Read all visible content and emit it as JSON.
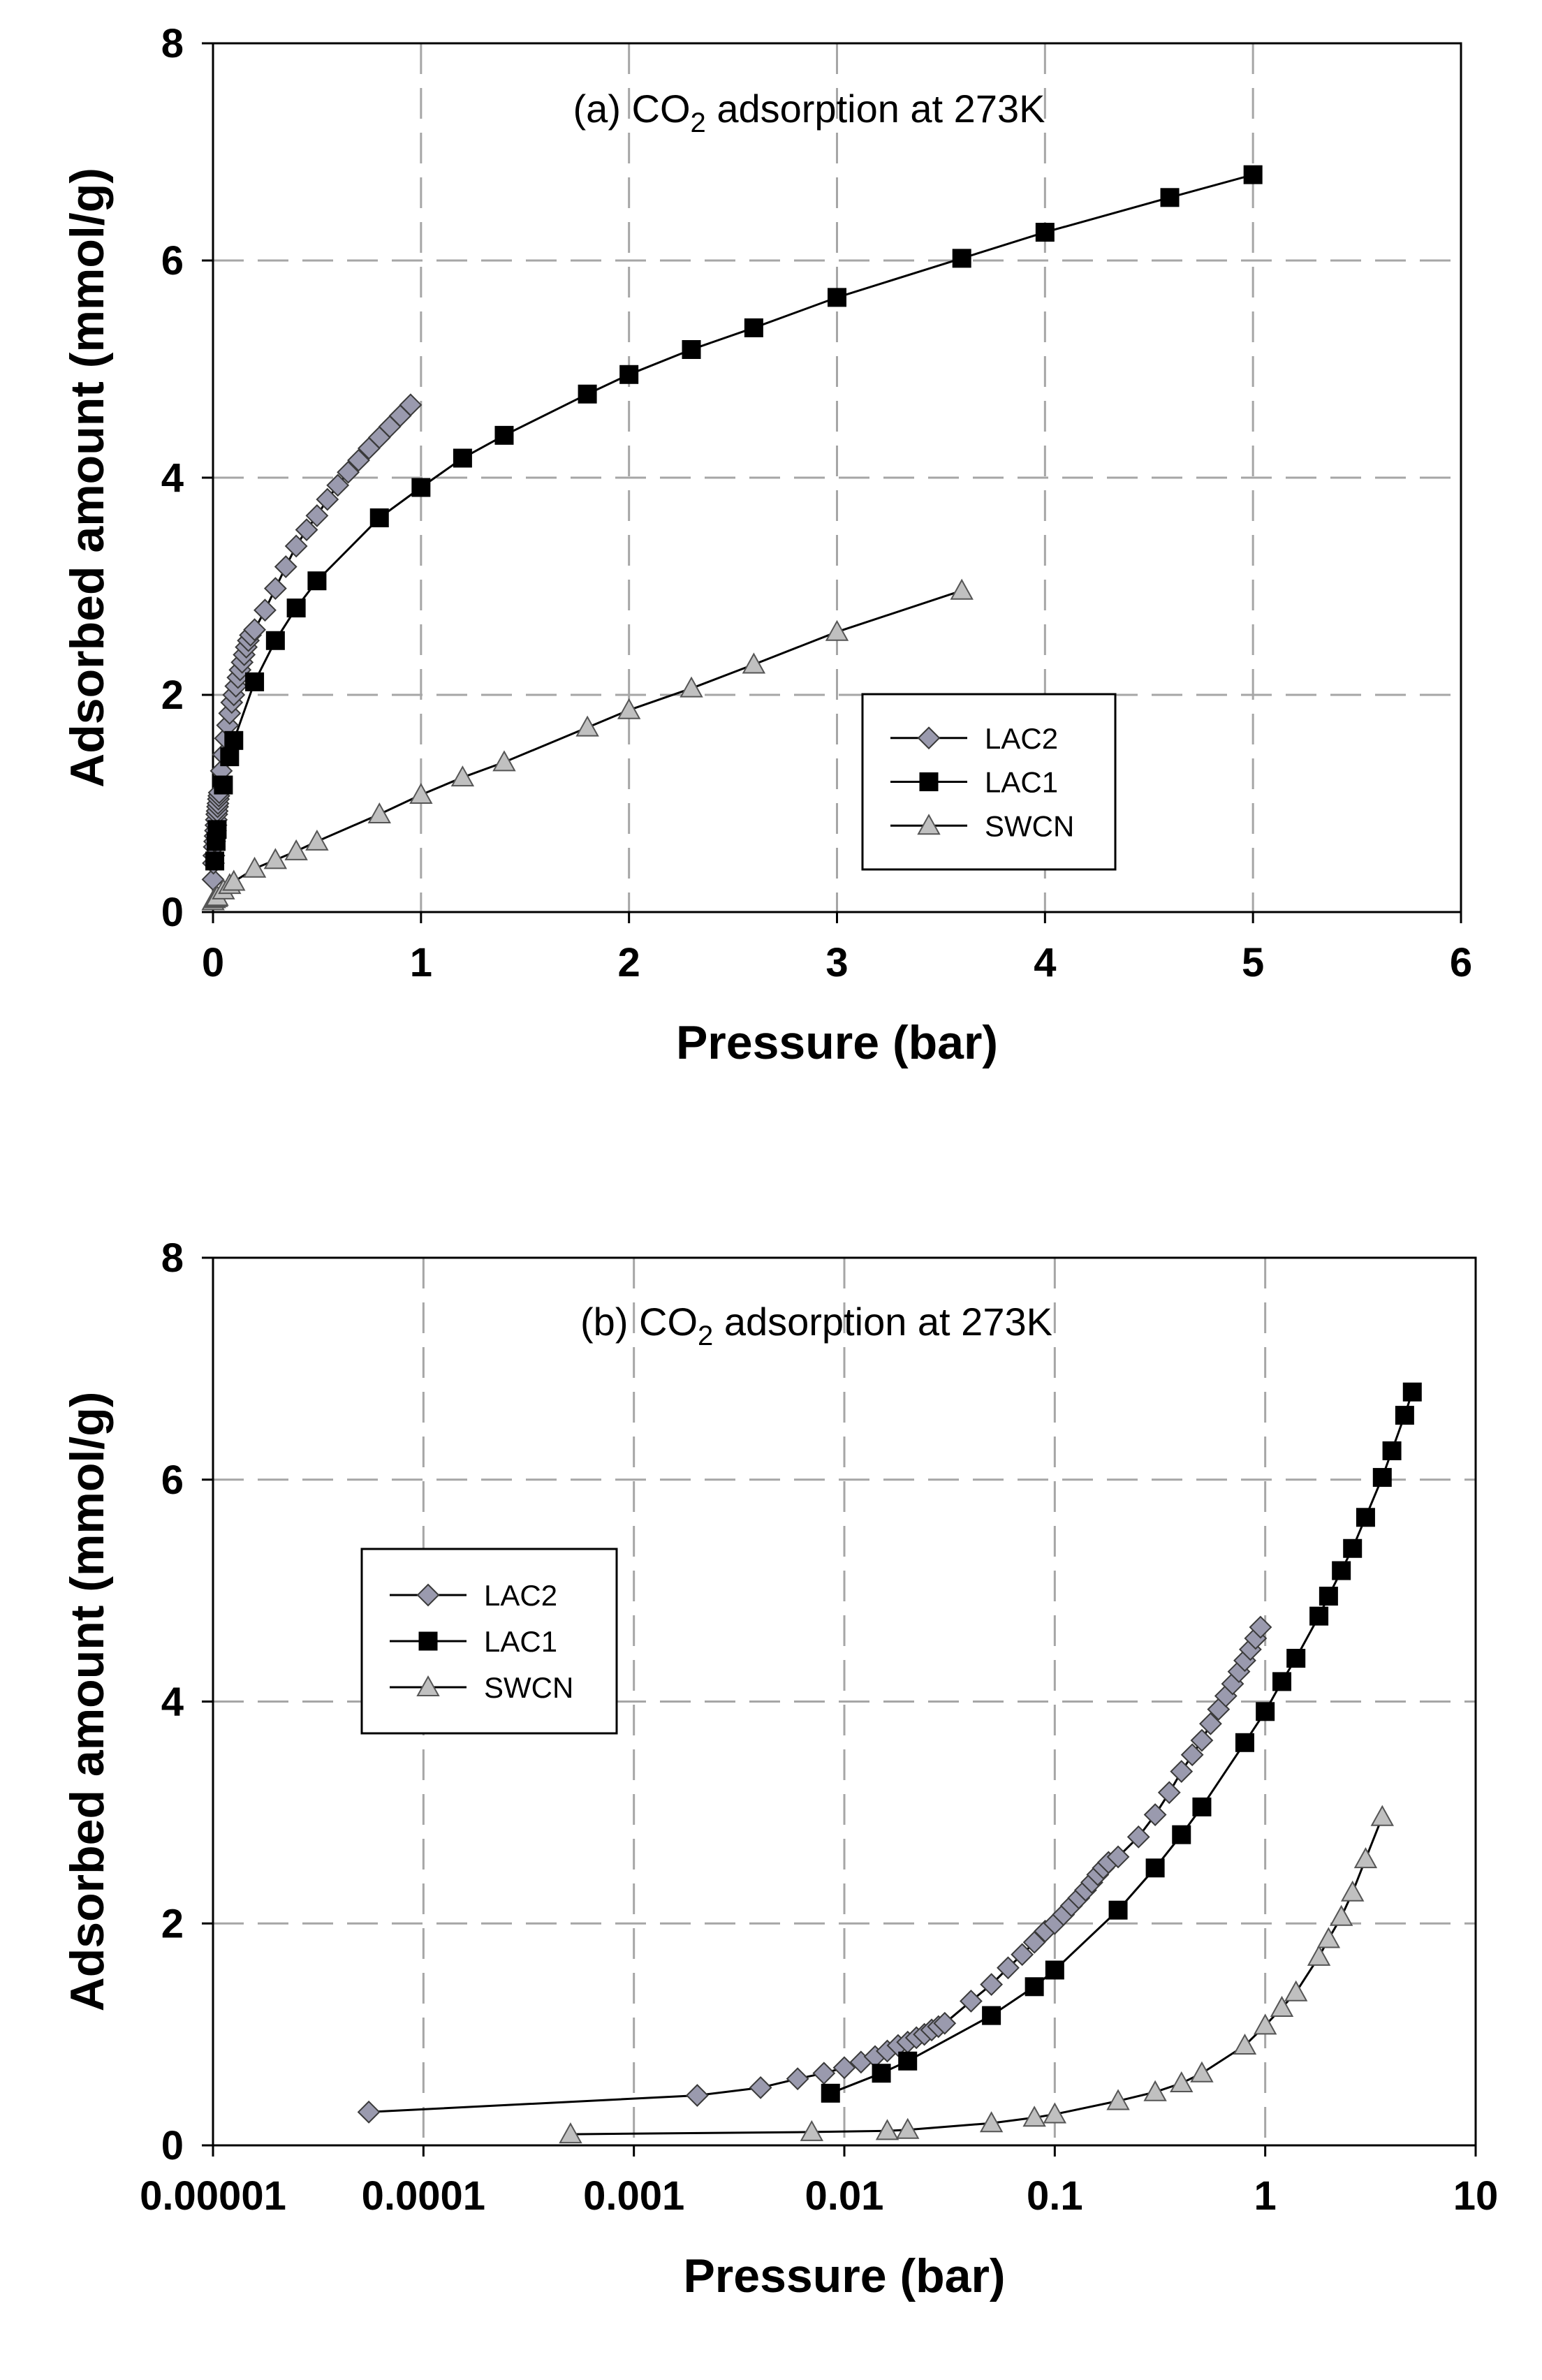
{
  "chart_data": [
    {
      "type": "scatter",
      "title_prefix": "(a) CO",
      "title_sub": "2",
      "title_suffix": " adsorption at 273K",
      "xlabel": "Pressure (bar)",
      "ylabel": "Adsorbed amount (mmol/g)",
      "xscale": "linear",
      "xlim": [
        0,
        6
      ],
      "ylim": [
        0,
        8
      ],
      "xticks": [
        0,
        1,
        2,
        3,
        4,
        5,
        6
      ],
      "xtick_labels": [
        "0",
        "1",
        "2",
        "3",
        "4",
        "5",
        "6"
      ],
      "yticks": [
        0,
        2,
        4,
        6,
        8
      ],
      "ytick_labels": [
        "0",
        "2",
        "4",
        "6",
        "8"
      ],
      "grid": true,
      "legend_position": "lower-right",
      "series": [
        {
          "name": "LAC2",
          "marker": "diamond",
          "color": "#9a9aae",
          "x": [
            0.0001,
            0.002,
            0.004,
            0.006,
            0.008,
            0.01,
            0.012,
            0.014,
            0.016,
            0.018,
            0.02,
            0.022,
            0.024,
            0.026,
            0.028,
            0.03,
            0.04,
            0.05,
            0.06,
            0.07,
            0.08,
            0.09,
            0.1,
            0.11,
            0.12,
            0.13,
            0.14,
            0.15,
            0.16,
            0.17,
            0.18,
            0.2,
            0.25,
            0.3,
            0.35,
            0.4,
            0.45,
            0.5,
            0.55,
            0.6,
            0.65,
            0.7,
            0.75,
            0.8,
            0.85,
            0.9,
            0.95
          ],
          "y": [
            0.3,
            0.45,
            0.52,
            0.6,
            0.65,
            0.7,
            0.75,
            0.8,
            0.85,
            0.9,
            0.93,
            0.97,
            1.0,
            1.04,
            1.07,
            1.1,
            1.3,
            1.45,
            1.6,
            1.72,
            1.83,
            1.93,
            2.0,
            2.08,
            2.16,
            2.23,
            2.3,
            2.37,
            2.44,
            2.5,
            2.55,
            2.6,
            2.78,
            2.98,
            3.18,
            3.37,
            3.52,
            3.65,
            3.8,
            3.93,
            4.05,
            4.16,
            4.27,
            4.37,
            4.47,
            4.57,
            4.67
          ]
        },
        {
          "name": "LAC1",
          "marker": "square",
          "color": "#000000",
          "x": [
            0.0086,
            0.015,
            0.02,
            0.05,
            0.08,
            0.1,
            0.2,
            0.3,
            0.4,
            0.5,
            0.8,
            1.0,
            1.2,
            1.4,
            1.8,
            2.0,
            2.3,
            2.6,
            3.0,
            3.6,
            4.0,
            4.6,
            5.0
          ],
          "y": [
            0.47,
            0.65,
            0.76,
            1.17,
            1.43,
            1.58,
            2.12,
            2.5,
            2.8,
            3.05,
            3.63,
            3.91,
            4.18,
            4.39,
            4.77,
            4.95,
            5.18,
            5.38,
            5.66,
            6.02,
            6.26,
            6.58,
            6.79
          ]
        },
        {
          "name": "SWCN",
          "marker": "triangle",
          "color": "#c0c0c0",
          "x": [
            0.0005,
            0.007,
            0.016,
            0.02,
            0.05,
            0.08,
            0.1,
            0.2,
            0.3,
            0.4,
            0.5,
            0.8,
            1.0,
            1.2,
            1.4,
            1.8,
            2.0,
            2.3,
            2.6,
            3.0,
            3.6
          ],
          "y": [
            0.1,
            0.12,
            0.13,
            0.14,
            0.2,
            0.25,
            0.28,
            0.4,
            0.48,
            0.56,
            0.65,
            0.9,
            1.08,
            1.24,
            1.38,
            1.7,
            1.86,
            2.06,
            2.28,
            2.58,
            2.96
          ]
        }
      ]
    },
    {
      "type": "scatter",
      "title_prefix": "(b) CO",
      "title_sub": "2",
      "title_suffix": " adsorption at 273K",
      "xlabel": "Pressure (bar)",
      "ylabel": "Adsorbed amount (mmol/g)",
      "xscale": "log",
      "xlim": [
        1e-05,
        10
      ],
      "ylim": [
        0,
        8
      ],
      "xticks": [
        1e-05,
        0.0001,
        0.001,
        0.01,
        0.1,
        1,
        10
      ],
      "xtick_labels": [
        "0.00001",
        "0.0001",
        "0.001",
        "0.01",
        "0.1",
        "1",
        "10"
      ],
      "yticks": [
        0,
        2,
        4,
        6,
        8
      ],
      "ytick_labels": [
        "0",
        "2",
        "4",
        "6",
        "8"
      ],
      "grid": true,
      "legend_position": "upper-left",
      "series": [
        {
          "name": "LAC2",
          "marker": "diamond",
          "color": "#9a9aae",
          "x": [
            5.5e-05,
            0.002,
            0.004,
            0.006,
            0.008,
            0.01,
            0.012,
            0.014,
            0.016,
            0.018,
            0.02,
            0.022,
            0.024,
            0.026,
            0.028,
            0.03,
            0.04,
            0.05,
            0.06,
            0.07,
            0.08,
            0.09,
            0.1,
            0.11,
            0.12,
            0.13,
            0.14,
            0.15,
            0.16,
            0.17,
            0.18,
            0.2,
            0.25,
            0.3,
            0.35,
            0.4,
            0.45,
            0.5,
            0.55,
            0.6,
            0.65,
            0.7,
            0.75,
            0.8,
            0.85,
            0.9,
            0.95
          ],
          "y": [
            0.3,
            0.45,
            0.52,
            0.6,
            0.65,
            0.7,
            0.75,
            0.8,
            0.85,
            0.9,
            0.93,
            0.97,
            1.0,
            1.04,
            1.07,
            1.1,
            1.3,
            1.45,
            1.6,
            1.72,
            1.83,
            1.93,
            2.0,
            2.08,
            2.16,
            2.23,
            2.3,
            2.37,
            2.44,
            2.5,
            2.55,
            2.6,
            2.78,
            2.98,
            3.18,
            3.37,
            3.52,
            3.65,
            3.8,
            3.93,
            4.05,
            4.16,
            4.27,
            4.37,
            4.47,
            4.57,
            4.67
          ]
        },
        {
          "name": "LAC1",
          "marker": "square",
          "color": "#000000",
          "x": [
            0.0086,
            0.015,
            0.02,
            0.05,
            0.08,
            0.1,
            0.2,
            0.3,
            0.4,
            0.5,
            0.8,
            1.0,
            1.2,
            1.4,
            1.8,
            2.0,
            2.3,
            2.6,
            3.0,
            3.6,
            4.0,
            4.6,
            5.0
          ],
          "y": [
            0.47,
            0.65,
            0.76,
            1.17,
            1.43,
            1.58,
            2.12,
            2.5,
            2.8,
            3.05,
            3.63,
            3.91,
            4.18,
            4.39,
            4.77,
            4.95,
            5.18,
            5.38,
            5.66,
            6.02,
            6.26,
            6.58,
            6.79
          ]
        },
        {
          "name": "SWCN",
          "marker": "triangle",
          "color": "#c0c0c0",
          "x": [
            0.0005,
            0.007,
            0.016,
            0.02,
            0.05,
            0.08,
            0.1,
            0.2,
            0.3,
            0.4,
            0.5,
            0.8,
            1.0,
            1.2,
            1.4,
            1.8,
            2.0,
            2.3,
            2.6,
            3.0,
            3.6
          ],
          "y": [
            0.1,
            0.12,
            0.13,
            0.14,
            0.2,
            0.25,
            0.28,
            0.4,
            0.48,
            0.56,
            0.65,
            0.9,
            1.08,
            1.24,
            1.38,
            1.7,
            1.86,
            2.06,
            2.28,
            2.58,
            2.96
          ]
        }
      ]
    }
  ]
}
